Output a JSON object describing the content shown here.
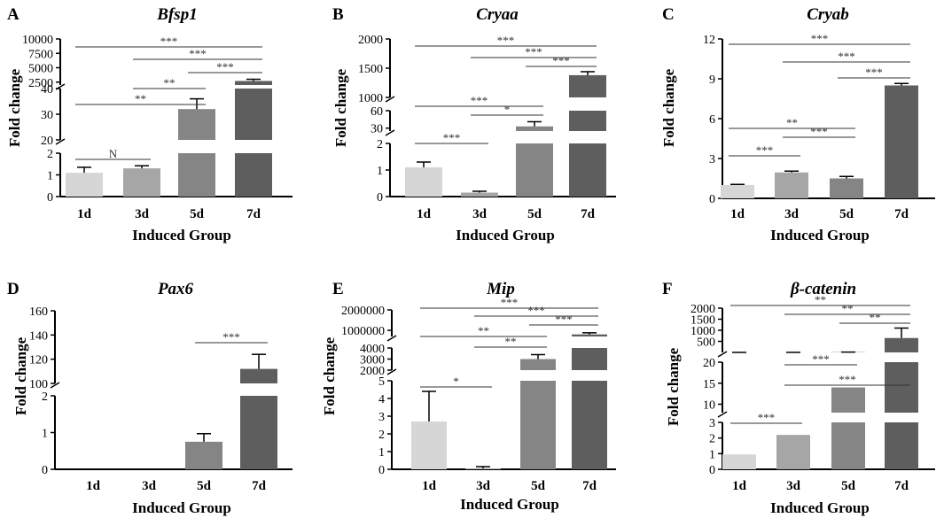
{
  "chart_data": [
    {
      "id": "A",
      "panel_letter": "A",
      "title": "Bfsp1",
      "type": "bar",
      "xlabel": "Induced Group",
      "ylabel": "Fold change",
      "categories": [
        "1d",
        "3d",
        "5d",
        "7d"
      ],
      "values": [
        1.1,
        1.3,
        32,
        2700
      ],
      "errors": [
        0.25,
        0.12,
        4,
        300
      ],
      "colors": [
        "#d6d6d6",
        "#a6a6a6",
        "#858585",
        "#5e5e5e"
      ],
      "y_segments": [
        {
          "range": [
            0,
            2
          ],
          "ticks": [
            0,
            1,
            2
          ]
        },
        {
          "range": [
            20,
            40
          ],
          "ticks": [
            20,
            30,
            40
          ]
        },
        {
          "range": [
            2000,
            10000
          ],
          "ticks": [
            2500,
            5000,
            7500,
            10000
          ]
        }
      ],
      "significance": [
        {
          "from": "1d",
          "to": "3d",
          "label": "N"
        },
        {
          "from": "1d",
          "to": "5d",
          "label": "**"
        },
        {
          "from": "3d",
          "to": "5d",
          "label": "**"
        },
        {
          "from": "1d",
          "to": "7d",
          "label": "***"
        },
        {
          "from": "3d",
          "to": "7d",
          "label": "***"
        },
        {
          "from": "5d",
          "to": "7d",
          "label": "***"
        }
      ]
    },
    {
      "id": "B",
      "panel_letter": "B",
      "title": "Cryaa",
      "type": "bar",
      "xlabel": "Induced Group",
      "ylabel": "Fold change",
      "categories": [
        "1d",
        "3d",
        "5d",
        "7d"
      ],
      "values": [
        1.1,
        0.15,
        33,
        1380
      ],
      "errors": [
        0.2,
        0.05,
        8,
        60
      ],
      "colors": [
        "#d6d6d6",
        "#a6a6a6",
        "#858585",
        "#5e5e5e"
      ],
      "y_segments": [
        {
          "range": [
            0,
            2
          ],
          "ticks": [
            0,
            1,
            2
          ]
        },
        {
          "range": [
            25,
            60
          ],
          "ticks": [
            30,
            60
          ]
        },
        {
          "range": [
            1000,
            2000
          ],
          "ticks": [
            1000,
            1500,
            2000
          ]
        }
      ],
      "significance": [
        {
          "from": "1d",
          "to": "3d",
          "label": "***"
        },
        {
          "from": "1d",
          "to": "5d",
          "label": "***"
        },
        {
          "from": "3d",
          "to": "5d",
          "label": "*"
        },
        {
          "from": "1d",
          "to": "7d",
          "label": "***"
        },
        {
          "from": "3d",
          "to": "7d",
          "label": "***"
        },
        {
          "from": "5d",
          "to": "7d",
          "label": "***"
        }
      ]
    },
    {
      "id": "C",
      "panel_letter": "C",
      "title": "Cryab",
      "type": "bar",
      "xlabel": "Induced Group",
      "ylabel": "Fold change",
      "categories": [
        "1d",
        "3d",
        "5d",
        "7d"
      ],
      "values": [
        1.0,
        1.95,
        1.5,
        8.5
      ],
      "errors": [
        0.05,
        0.1,
        0.15,
        0.15
      ],
      "colors": [
        "#d6d6d6",
        "#a6a6a6",
        "#858585",
        "#5e5e5e"
      ],
      "y_segments": [
        {
          "range": [
            0,
            12
          ],
          "ticks": [
            0,
            3,
            6,
            9,
            12
          ]
        }
      ],
      "significance": [
        {
          "from": "1d",
          "to": "3d",
          "label": "***"
        },
        {
          "from": "1d",
          "to": "5d",
          "label": "**"
        },
        {
          "from": "3d",
          "to": "5d",
          "label": "***"
        },
        {
          "from": "1d",
          "to": "7d",
          "label": "***"
        },
        {
          "from": "3d",
          "to": "7d",
          "label": "***"
        },
        {
          "from": "5d",
          "to": "7d",
          "label": "***"
        }
      ]
    },
    {
      "id": "D",
      "panel_letter": "D",
      "title": "Pax6",
      "type": "bar",
      "xlabel": "Induced Group",
      "ylabel": "Fold change",
      "categories": [
        "1d",
        "3d",
        "5d",
        "7d"
      ],
      "values": [
        0,
        0,
        0.75,
        112
      ],
      "errors": [
        0,
        0,
        0.22,
        12
      ],
      "colors": [
        "#d6d6d6",
        "#a6a6a6",
        "#858585",
        "#5e5e5e"
      ],
      "y_segments": [
        {
          "range": [
            0,
            2
          ],
          "ticks": [
            0,
            1,
            2
          ]
        },
        {
          "range": [
            100,
            160
          ],
          "ticks": [
            100,
            120,
            140,
            160
          ]
        }
      ],
      "significance": [
        {
          "from": "5d",
          "to": "7d",
          "label": "***"
        }
      ]
    },
    {
      "id": "E",
      "panel_letter": "E",
      "title": "Mip",
      "type": "bar",
      "xlabel": "Induced Group",
      "ylabel": "Fold change",
      "categories": [
        "1d",
        "3d",
        "5d",
        "7d"
      ],
      "values": [
        2.7,
        0.05,
        3000,
        800000
      ],
      "errors": [
        1.7,
        0.1,
        400,
        80000
      ],
      "colors": [
        "#d6d6d6",
        "#a6a6a6",
        "#858585",
        "#5e5e5e"
      ],
      "y_segments": [
        {
          "range": [
            0,
            5
          ],
          "ticks": [
            0,
            1,
            2,
            3,
            4,
            5
          ]
        },
        {
          "range": [
            2000,
            4000
          ],
          "ticks": [
            2000,
            3000,
            4000
          ]
        },
        {
          "range": [
            700000,
            2000000
          ],
          "ticks": [
            1000000,
            2000000
          ]
        }
      ],
      "significance": [
        {
          "from": "1d",
          "to": "3d",
          "label": "*"
        },
        {
          "from": "1d",
          "to": "5d",
          "label": "**"
        },
        {
          "from": "3d",
          "to": "5d",
          "label": "**"
        },
        {
          "from": "1d",
          "to": "7d",
          "label": "***"
        },
        {
          "from": "3d",
          "to": "7d",
          "label": "***"
        },
        {
          "from": "5d",
          "to": "7d",
          "label": "***"
        }
      ]
    },
    {
      "id": "F",
      "panel_letter": "F",
      "title": "β-catenin",
      "type": "bar",
      "xlabel": "Induced Group",
      "ylabel": "Fold change",
      "categories": [
        "1d",
        "3d",
        "5d",
        "7d"
      ],
      "values": [
        0.95,
        2.2,
        14,
        650
      ],
      "errors": [
        0.05,
        0.2,
        1,
        450
      ],
      "colors": [
        "#d6d6d6",
        "#a6a6a6",
        "#858585",
        "#5e5e5e"
      ],
      "y_segments": [
        {
          "range": [
            0,
            3
          ],
          "ticks": [
            0,
            1,
            2,
            3
          ]
        },
        {
          "range": [
            8,
            20
          ],
          "ticks": [
            10,
            15,
            20
          ]
        },
        {
          "range": [
            0,
            2000
          ],
          "ticks": [
            500,
            1000,
            1500,
            2000
          ]
        }
      ],
      "significance": [
        {
          "from": "1d",
          "to": "3d",
          "label": "***"
        },
        {
          "from": "3d",
          "to": "5d",
          "label": "***"
        },
        {
          "from": "3d",
          "to": "7d",
          "label": "***"
        },
        {
          "from": "1d",
          "to": "7d",
          "label": "**"
        },
        {
          "from": "3d",
          "to": "7d",
          "label": "**"
        },
        {
          "from": "5d",
          "to": "7d",
          "label": "**"
        }
      ]
    }
  ]
}
